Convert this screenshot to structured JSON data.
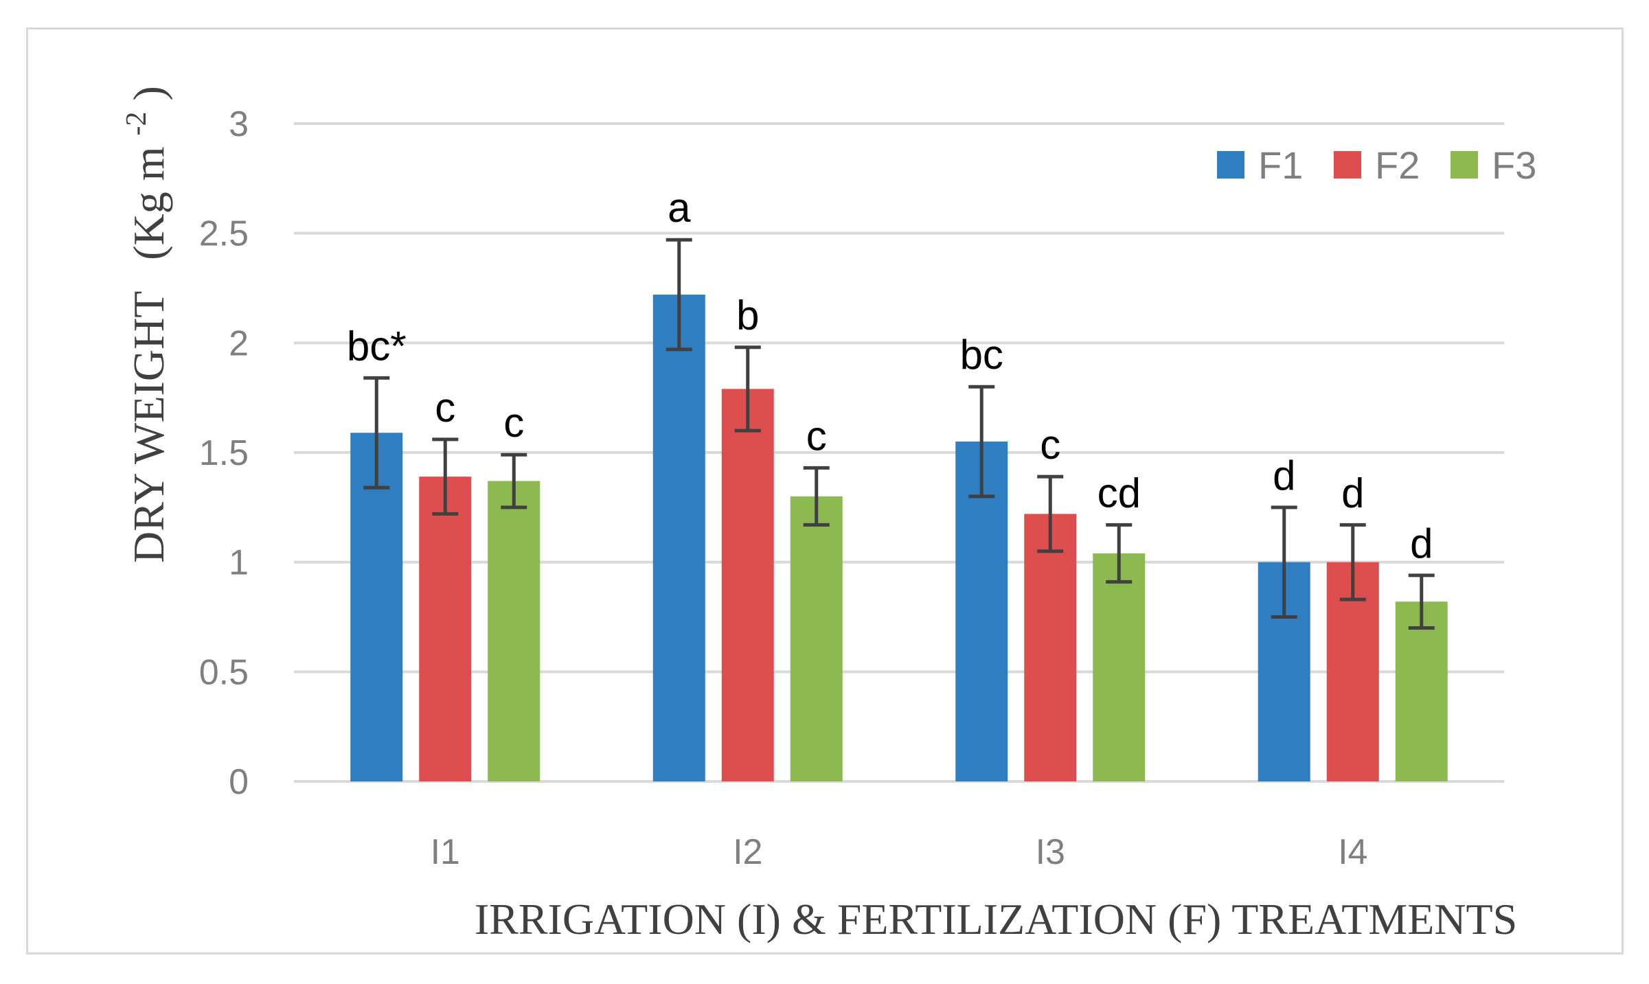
{
  "chart_data": {
    "type": "bar",
    "title": "",
    "xlabel": "IRRIGATION (I) & FERTILIZATION (F) TREATMENTS",
    "ylabel_main": "DRY WEIGHT",
    "ylabel_unit_prefix": "(Kg m",
    "ylabel_unit_exp": "-2",
    "ylabel_unit_suffix": ")",
    "ylim": [
      0,
      3
    ],
    "yticks": [
      0,
      0.5,
      1,
      1.5,
      2,
      2.5,
      3
    ],
    "ytick_labels": [
      "0",
      "0.5",
      "1",
      "1.5",
      "2",
      "2.5",
      "3"
    ],
    "grid": true,
    "legend_position": "top-right",
    "categories": [
      "I1",
      "I2",
      "I3",
      "I4"
    ],
    "series": [
      {
        "name": "F1",
        "color": "#2e7ec1",
        "values": [
          1.59,
          2.22,
          1.55,
          1.0
        ],
        "errors": [
          0.25,
          0.25,
          0.25,
          0.25
        ],
        "labels": [
          "bc*",
          "a",
          "bc",
          "d"
        ]
      },
      {
        "name": "F2",
        "color": "#df4e4e",
        "values": [
          1.39,
          1.79,
          1.22,
          1.0
        ],
        "errors": [
          0.17,
          0.19,
          0.17,
          0.17
        ],
        "labels": [
          "c",
          "b",
          "c",
          "d"
        ]
      },
      {
        "name": "F3",
        "color": "#8cba51",
        "values": [
          1.37,
          1.3,
          1.04,
          0.82
        ],
        "errors": [
          0.12,
          0.13,
          0.13,
          0.12
        ],
        "labels": [
          "c",
          "c",
          "cd",
          "d"
        ]
      }
    ]
  }
}
